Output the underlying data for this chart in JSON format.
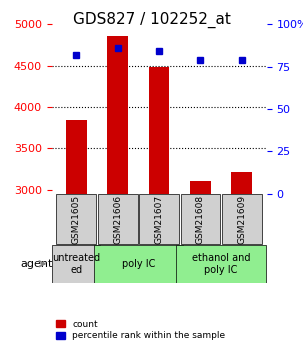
{
  "title": "GDS827 / 102252_at",
  "samples": [
    "GSM21605",
    "GSM21606",
    "GSM21607",
    "GSM21608",
    "GSM21609"
  ],
  "counts": [
    3840,
    4860,
    4480,
    3110,
    3210
  ],
  "percentile_ranks": [
    82,
    86,
    84,
    79,
    79
  ],
  "ylim_left": [
    2950,
    5000
  ],
  "ylim_right": [
    0,
    100
  ],
  "yticks_left": [
    3000,
    3500,
    4000,
    4500,
    5000
  ],
  "yticks_right": [
    0,
    25,
    50,
    75,
    100
  ],
  "bar_color": "#cc0000",
  "dot_color": "#0000cc",
  "agent_groups": [
    {
      "label": "untreated\ned",
      "span": [
        0,
        1
      ],
      "color": "#d0d0d0"
    },
    {
      "label": "poly IC",
      "span": [
        1,
        3
      ],
      "color": "#90ee90"
    },
    {
      "label": "ethanol and\npoly IC",
      "span": [
        3,
        5
      ],
      "color": "#90ee90"
    }
  ],
  "sample_box_color": "#d0d0d0",
  "title_fontsize": 11,
  "tick_fontsize": 8,
  "label_fontsize": 8,
  "agent_fontsize": 8
}
